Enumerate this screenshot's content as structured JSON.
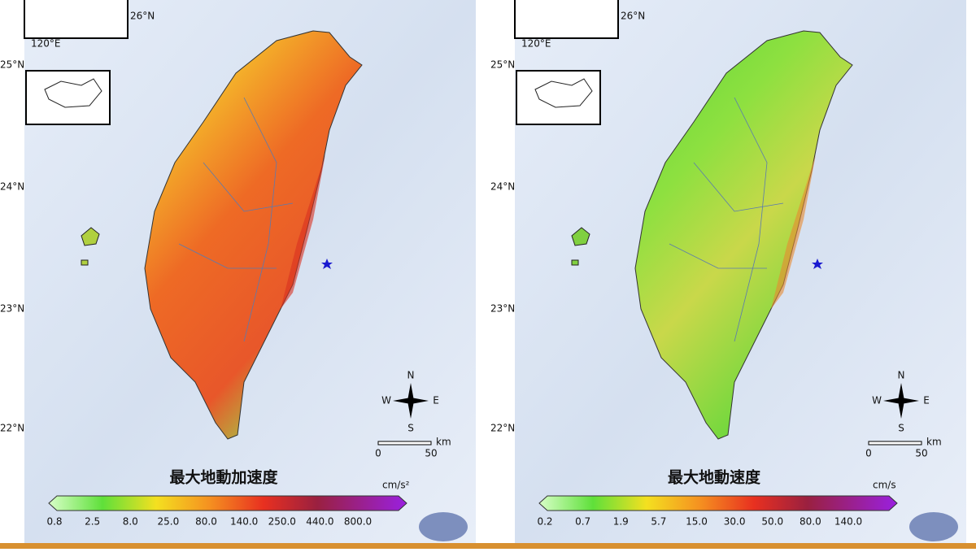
{
  "panels": [
    {
      "title": "最大地動加速度",
      "unit": "cm/s²",
      "colorbar_labels": [
        "0.8",
        "2.5",
        "8.0",
        "25.0",
        "80.0",
        "140.0",
        "250.0",
        "440.0",
        "800.0"
      ],
      "lat_labels": [
        "25°N",
        "24°N",
        "23°N",
        "22°N"
      ],
      "inset_lat": "26°N",
      "inset_lon": "120°E",
      "compass": [
        "N",
        "S",
        "W",
        "E"
      ],
      "scale_labels": [
        "0",
        "50",
        "km"
      ]
    },
    {
      "title": "最大地動速度",
      "unit": "cm/s",
      "colorbar_labels": [
        "0.2",
        "0.7",
        "1.9",
        "5.7",
        "15.0",
        "30.0",
        "50.0",
        "80.0",
        "140.0"
      ],
      "lat_labels": [
        "25°N",
        "24°N",
        "23°N",
        "22°N"
      ],
      "inset_lat": "26°N",
      "inset_lon": "120°E",
      "compass": [
        "N",
        "S",
        "W",
        "E"
      ],
      "scale_labels": [
        "0",
        "50",
        "km"
      ]
    }
  ]
}
